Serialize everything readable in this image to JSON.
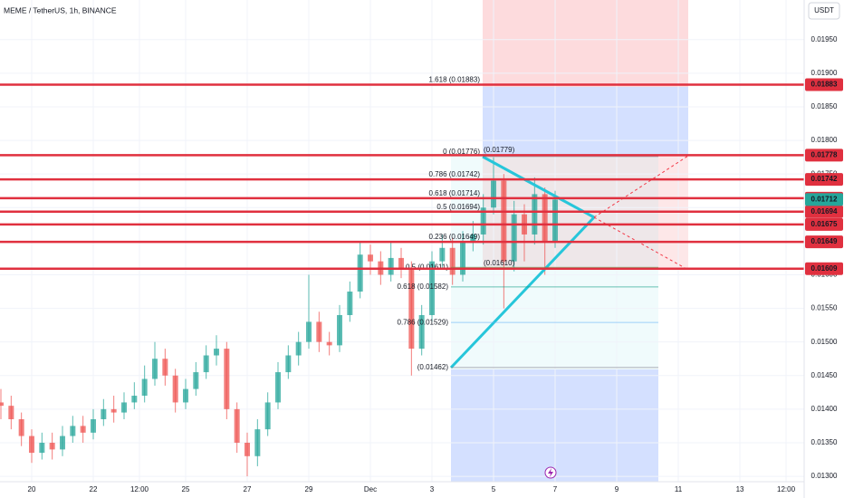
{
  "chart_data": {
    "type": "candlestick",
    "title": "MEME / TetherUS, 1h, BINANCE",
    "currency": "USDT",
    "up_color": "#26a69a",
    "down_color": "#ef5350",
    "line_color": "#e0303f",
    "xlim": [
      -24.7,
      602.1
    ],
    "xticks": [
      {
        "value": 0,
        "label": "20"
      },
      {
        "value": 48,
        "label": "22"
      },
      {
        "value": 84,
        "label": "12:00"
      },
      {
        "value": 120,
        "label": "25"
      },
      {
        "value": 168,
        "label": "27"
      },
      {
        "value": 216,
        "label": "29"
      },
      {
        "value": 264,
        "label": "Dec"
      },
      {
        "value": 312,
        "label": "3"
      },
      {
        "value": 360,
        "label": "5"
      },
      {
        "value": 408,
        "label": "7"
      },
      {
        "value": 456,
        "label": "9"
      },
      {
        "value": 504,
        "label": "11"
      },
      {
        "value": 552,
        "label": "13"
      },
      {
        "value": 588,
        "label": "12:00"
      }
    ],
    "ylim": [
      0.01292,
      0.02009
    ],
    "yticks": [
      {
        "value": 0.013,
        "label": "0.01300"
      },
      {
        "value": 0.0135,
        "label": "0.01350"
      },
      {
        "value": 0.014,
        "label": "0.01400"
      },
      {
        "value": 0.0145,
        "label": "0.01450"
      },
      {
        "value": 0.015,
        "label": "0.01500"
      },
      {
        "value": 0.0155,
        "label": "0.01550"
      },
      {
        "value": 0.016,
        "label": "0.01600"
      },
      {
        "value": 0.0165,
        "label": "0.01650"
      },
      {
        "value": 0.017,
        "label": "0.01700"
      },
      {
        "value": 0.0175,
        "label": "0.01750"
      },
      {
        "value": 0.018,
        "label": "0.01800"
      },
      {
        "value": 0.0185,
        "label": "0.01850"
      },
      {
        "value": 0.019,
        "label": "0.01900"
      },
      {
        "value": 0.0195,
        "label": "0.01950"
      }
    ],
    "x": [
      -24,
      -16,
      -8,
      0,
      8,
      16,
      24,
      32,
      40,
      48,
      56,
      64,
      72,
      80,
      88,
      96,
      104,
      112,
      120,
      128,
      136,
      144,
      152,
      160,
      168,
      176,
      184,
      192,
      200,
      208,
      216,
      224,
      232,
      240,
      248,
      256,
      264,
      272,
      280,
      288,
      296,
      304,
      312,
      320,
      328,
      336,
      344,
      352,
      360,
      368,
      376,
      384,
      392,
      400,
      408
    ],
    "open": [
      0.0141,
      0.01405,
      0.01385,
      0.0136,
      0.01335,
      0.0135,
      0.0134,
      0.0136,
      0.01375,
      0.01365,
      0.01385,
      0.014,
      0.01395,
      0.0141,
      0.0142,
      0.01445,
      0.01475,
      0.0145,
      0.0141,
      0.0143,
      0.01455,
      0.0148,
      0.0149,
      0.014,
      0.0135,
      0.0133,
      0.0137,
      0.0141,
      0.01455,
      0.0148,
      0.015,
      0.0153,
      0.015,
      0.01495,
      0.0154,
      0.01575,
      0.0163,
      0.0162,
      0.016,
      0.01625,
      0.0161,
      0.0149,
      0.0154,
      0.0162,
      0.0164,
      0.016,
      0.0165,
      0.0166,
      0.017,
      0.0174,
      0.0162,
      0.0169,
      0.0166,
      0.0172,
      0.0165
    ],
    "high": [
      0.0143,
      0.0142,
      0.01395,
      0.0137,
      0.01365,
      0.01365,
      0.01375,
      0.0139,
      0.0139,
      0.014,
      0.01415,
      0.0142,
      0.01425,
      0.0144,
      0.01465,
      0.015,
      0.0149,
      0.0146,
      0.01445,
      0.0147,
      0.01495,
      0.0151,
      0.015,
      0.0141,
      0.01365,
      0.01385,
      0.01425,
      0.0147,
      0.01495,
      0.01515,
      0.016,
      0.01545,
      0.01515,
      0.01555,
      0.0159,
      0.0165,
      0.01645,
      0.01635,
      0.0165,
      0.0164,
      0.0162,
      0.01555,
      0.01635,
      0.0166,
      0.01655,
      0.01665,
      0.0168,
      0.0172,
      0.01775,
      0.0175,
      0.0171,
      0.01705,
      0.01745,
      0.0173,
      0.01725
    ],
    "low": [
      0.01385,
      0.0137,
      0.01345,
      0.0132,
      0.01325,
      0.01325,
      0.0133,
      0.0135,
      0.0135,
      0.01355,
      0.01375,
      0.0138,
      0.01385,
      0.014,
      0.0141,
      0.01435,
      0.01435,
      0.01395,
      0.014,
      0.0142,
      0.01445,
      0.01465,
      0.01385,
      0.01335,
      0.013,
      0.01315,
      0.0136,
      0.014,
      0.01445,
      0.01465,
      0.0149,
      0.01485,
      0.0148,
      0.01485,
      0.0153,
      0.01565,
      0.016,
      0.01585,
      0.0159,
      0.01595,
      0.0145,
      0.0148,
      0.0153,
      0.0161,
      0.01585,
      0.0159,
      0.01635,
      0.01645,
      0.0169,
      0.0155,
      0.01605,
      0.0162,
      0.01645,
      0.016,
      0.0164
    ],
    "close": [
      0.01405,
      0.01385,
      0.0136,
      0.01335,
      0.0135,
      0.0134,
      0.0136,
      0.01375,
      0.01365,
      0.01385,
      0.014,
      0.01395,
      0.0141,
      0.0142,
      0.01445,
      0.01475,
      0.0145,
      0.0141,
      0.0143,
      0.01455,
      0.0148,
      0.0149,
      0.014,
      0.0135,
      0.0133,
      0.0137,
      0.0141,
      0.01455,
      0.0148,
      0.015,
      0.0153,
      0.015,
      0.01495,
      0.0154,
      0.01575,
      0.0163,
      0.0162,
      0.016,
      0.01625,
      0.0161,
      0.0149,
      0.0154,
      0.0162,
      0.0164,
      0.016,
      0.0165,
      0.0166,
      0.017,
      0.0174,
      0.0162,
      0.0169,
      0.0166,
      0.0172,
      0.0165,
      0.01712
    ],
    "price_lines": [
      0.01883,
      0.01778,
      0.01742,
      0.01714,
      0.01694,
      0.01675,
      0.01649,
      0.01609
    ],
    "last_price": 0.01712,
    "fib_right": [
      {
        "text": "1.618 (0.01883)",
        "price": 0.01883,
        "color": "#2962ff"
      },
      {
        "text": "0 (0.01776)",
        "price": 0.01776,
        "color": "#787b86"
      },
      {
        "text": "0.786 (0.01742)",
        "price": 0.01742,
        "color": "#64b5f6"
      },
      {
        "text": "0.618 (0.01714)",
        "price": 0.01714,
        "color": "#089981"
      },
      {
        "text": "0.5 (0.01694)",
        "price": 0.01694,
        "color": "#4caf50"
      },
      {
        "text": "0.236 (0.01649)",
        "price": 0.01649,
        "color": "#f23645"
      }
    ],
    "fib_left": [
      {
        "text": "0.5 (0.01611)",
        "price": 0.01611,
        "color": "#4caf50"
      },
      {
        "text": "0.618 (0.01582)",
        "price": 0.01582,
        "color": "#089981"
      },
      {
        "text": "0.786 (0.01529)",
        "price": 0.01529,
        "color": "#64b5f6"
      },
      {
        "text": "(0.01462)",
        "price": 0.01462,
        "color": "#787b86"
      }
    ],
    "extra_labels": [
      {
        "text": "(0.01779)",
        "price": 0.01779
      },
      {
        "text": "(0.01610)",
        "price": 0.0161
      }
    ]
  }
}
